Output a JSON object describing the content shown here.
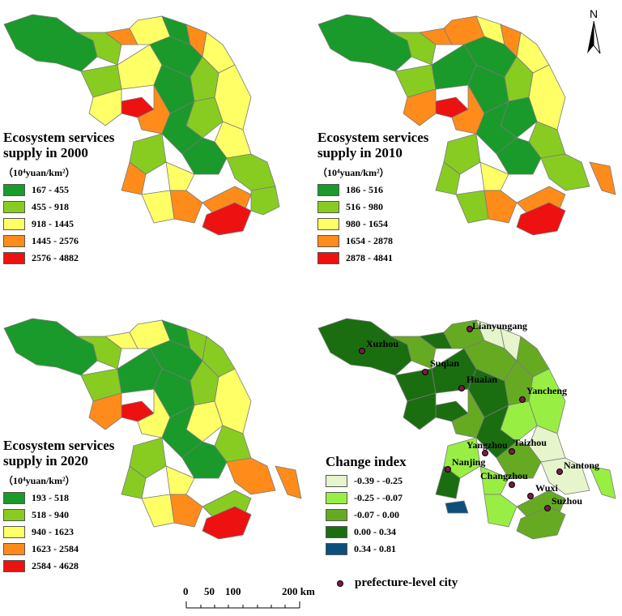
{
  "panels": [
    {
      "title_line1": "Ecosystem services",
      "title_line2": "supply in 2000",
      "unit": "（10⁴yuan/km²）",
      "classes": [
        {
          "label": "167 - 455",
          "color": "#1a9a2a"
        },
        {
          "label": "455 - 918",
          "color": "#88cc22"
        },
        {
          "label": "918 - 1445",
          "color": "#ffff66"
        },
        {
          "label": "1445 - 2576",
          "color": "#ff8c1a"
        },
        {
          "label": "2576 - 4882",
          "color": "#ee1111"
        }
      ]
    },
    {
      "title_line1": "Ecosystem services",
      "title_line2": "supply in 2010",
      "unit": "（10⁴yuan/km²）",
      "classes": [
        {
          "label": "186 - 516",
          "color": "#1a9a2a"
        },
        {
          "label": "516 - 980",
          "color": "#88cc22"
        },
        {
          "label": "980 - 1654",
          "color": "#ffff66"
        },
        {
          "label": "1654 - 2878",
          "color": "#ff8c1a"
        },
        {
          "label": "2878 - 4841",
          "color": "#ee1111"
        }
      ]
    },
    {
      "title_line1": "Ecosystem services",
      "title_line2": "supply in 2020",
      "unit": "（10⁴yuan/km²）",
      "classes": [
        {
          "label": "193 - 518",
          "color": "#1a9a2a"
        },
        {
          "label": "518 - 940",
          "color": "#88cc22"
        },
        {
          "label": "940 - 1623",
          "color": "#ffff66"
        },
        {
          "label": "1623 - 2584",
          "color": "#ff8c1a"
        },
        {
          "label": "2584 - 4628",
          "color": "#ee1111"
        }
      ]
    },
    {
      "title_line1": "Change index",
      "classes": [
        {
          "label": "-0.39 - -0.25",
          "color": "#e6f5cc"
        },
        {
          "label": "-0.25 - -0.07",
          "color": "#99ee44"
        },
        {
          "label": "-0.07 - 0.00",
          "color": "#66aa22"
        },
        {
          "label": "0.00 - 0.34",
          "color": "#1a6e10"
        },
        {
          "label": "0.34 - 0.81",
          "color": "#0b4f7a"
        }
      ]
    }
  ],
  "cities": [
    "Lianyungang",
    "Xuzhou",
    "Suqian",
    "Huaian",
    "Yancheng",
    "Yangzhou",
    "Taizhou",
    "Nanjing",
    "Changzhou",
    "Nantong",
    "Wuxi",
    "Suzhou"
  ],
  "city_legend": "prefecture-level city",
  "north_label": "N",
  "scale_bar": {
    "ticks": [
      "0",
      "50",
      "100",
      "200 km"
    ]
  },
  "colors": {
    "district_border": "#7a7a7a",
    "city_dot": "#7a1a4a"
  }
}
